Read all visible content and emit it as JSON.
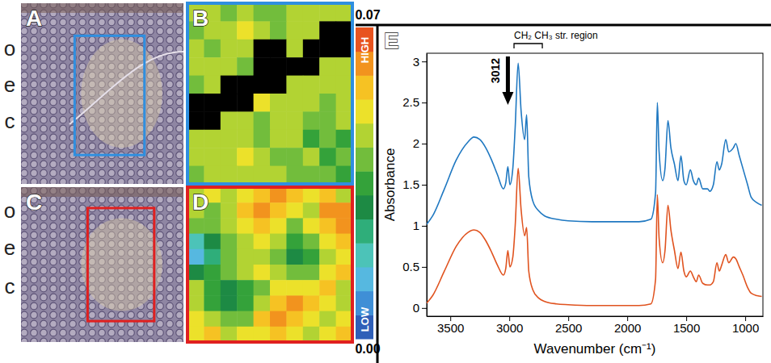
{
  "chart_data": [
    {
      "type": "image",
      "title": "A",
      "layers": [
        "o",
        "e",
        "c"
      ],
      "color": "#2f8fe0"
    },
    {
      "type": "heatmap",
      "title": "B",
      "color": "#2f8fe0",
      "cells": [
        [
          0.044,
          0.046,
          0.041,
          0.045,
          0.039,
          0.043,
          0.046,
          0.047,
          0.044,
          0.046
        ],
        [
          0.042,
          0.047,
          0.045,
          0.049,
          0.046,
          0.043,
          0.047,
          0.044,
          null,
          null
        ],
        [
          0.045,
          0.043,
          0.046,
          0.048,
          null,
          null,
          0.045,
          null,
          null,
          null
        ],
        [
          0.047,
          0.044,
          0.045,
          0.043,
          null,
          null,
          null,
          null,
          0.046,
          0.044
        ],
        [
          0.043,
          0.046,
          null,
          null,
          null,
          null,
          0.047,
          0.045,
          0.048,
          0.046
        ],
        [
          null,
          null,
          null,
          null,
          0.049,
          0.046,
          0.044,
          0.047,
          0.043,
          0.045
        ],
        [
          null,
          null,
          0.047,
          0.045,
          0.043,
          0.048,
          0.046,
          0.042,
          0.038,
          0.044
        ],
        [
          0.046,
          0.044,
          0.048,
          0.046,
          0.042,
          0.045,
          0.047,
          0.036,
          0.041,
          0.034
        ],
        [
          0.045,
          0.047,
          0.044,
          0.049,
          0.046,
          0.043,
          0.04,
          0.044,
          0.033,
          0.039
        ],
        [
          0.043,
          0.045,
          0.046,
          0.044,
          0.047,
          0.045,
          0.042,
          0.039,
          0.041,
          0.036
        ]
      ]
    },
    {
      "type": "image",
      "title": "C",
      "layers": [
        "o",
        "e",
        "c"
      ],
      "color": "#e02020"
    },
    {
      "type": "heatmap",
      "title": "D",
      "color": "#e02020",
      "cells": [
        [
          0.046,
          0.05,
          0.044,
          0.052,
          0.058,
          0.062,
          0.056,
          0.05,
          0.054,
          0.048
        ],
        [
          0.044,
          0.042,
          0.048,
          0.055,
          0.063,
          0.057,
          0.052,
          0.047,
          0.06,
          0.064
        ],
        [
          0.04,
          0.038,
          0.045,
          0.05,
          0.056,
          0.049,
          0.043,
          0.05,
          0.057,
          0.061
        ],
        [
          0.018,
          0.03,
          0.041,
          0.046,
          0.052,
          0.045,
          0.036,
          0.04,
          0.049,
          0.056
        ],
        [
          0.014,
          0.025,
          0.038,
          0.044,
          0.048,
          0.04,
          0.03,
          0.034,
          0.046,
          0.052
        ],
        [
          0.03,
          0.036,
          0.042,
          0.047,
          0.053,
          0.046,
          0.038,
          0.043,
          0.05,
          0.055
        ],
        [
          0.045,
          0.033,
          0.03,
          0.036,
          0.042,
          0.051,
          0.049,
          0.053,
          0.058,
          0.047
        ],
        [
          0.048,
          0.034,
          0.028,
          0.033,
          0.046,
          0.059,
          0.064,
          0.057,
          0.051,
          0.044
        ],
        [
          0.052,
          0.046,
          0.038,
          0.043,
          0.055,
          0.062,
          0.058,
          0.05,
          0.045,
          0.049
        ],
        [
          0.05,
          0.055,
          0.048,
          0.052,
          0.049,
          0.056,
          0.051,
          0.046,
          0.053,
          0.057
        ]
      ]
    },
    {
      "type": "colorbar",
      "range": [
        0,
        0.07
      ],
      "ticks": [
        {
          "value": 0,
          "label": "0.00"
        },
        0.07
      ],
      "colors": [
        "#2f5fb8",
        "#3f8fd6",
        "#56b8e0",
        "#4cc3b8",
        "#2fae7a",
        "#1d8a44",
        "#34a23a",
        "#72bd3c",
        "#b2d333",
        "#ece12a",
        "#f6c223",
        "#f2931e",
        "#e8531f"
      ],
      "high_label": "HIGH",
      "low_label": "LOW"
    },
    {
      "type": "line",
      "title": "E",
      "x_label": "Wavenumber (cm⁻¹)",
      "y_label": "Absorbance",
      "x": [
        3700,
        3650,
        3550,
        3450,
        3350,
        3300,
        3250,
        3200,
        3150,
        3100,
        3050,
        3030,
        3012,
        2995,
        2970,
        2950,
        2925,
        2900,
        2870,
        2853,
        2835,
        2800,
        2750,
        2700,
        2600,
        2500,
        2300,
        2100,
        1900,
        1800,
        1760,
        1745,
        1730,
        1700,
        1680,
        1655,
        1630,
        1600,
        1570,
        1545,
        1520,
        1500,
        1465,
        1440,
        1415,
        1395,
        1360,
        1320,
        1300,
        1270,
        1240,
        1220,
        1200,
        1165,
        1140,
        1100,
        1080,
        1050,
        1020,
        980,
        950,
        900,
        860
      ],
      "series": [
        {
          "color": "#1f78c1",
          "values": [
            1.02,
            1.12,
            1.45,
            1.8,
            2.02,
            2.08,
            2.05,
            1.95,
            1.8,
            1.62,
            1.45,
            1.52,
            1.72,
            1.5,
            1.7,
            2.2,
            2.98,
            2.4,
            2.05,
            2.35,
            1.6,
            1.3,
            1.18,
            1.12,
            1.08,
            1.06,
            1.05,
            1.05,
            1.05,
            1.08,
            1.4,
            2.5,
            1.9,
            1.55,
            1.7,
            2.28,
            1.95,
            1.75,
            1.55,
            1.85,
            1.55,
            1.5,
            1.68,
            1.55,
            1.5,
            1.58,
            1.45,
            1.45,
            1.42,
            1.5,
            1.78,
            1.68,
            1.75,
            2.05,
            1.9,
            1.95,
            2.0,
            1.85,
            1.7,
            1.5,
            1.35,
            1.28,
            1.25
          ]
        },
        {
          "color": "#e0531f",
          "values": [
            0.06,
            0.15,
            0.45,
            0.75,
            0.92,
            0.95,
            0.92,
            0.82,
            0.68,
            0.52,
            0.4,
            0.48,
            0.7,
            0.5,
            0.62,
            1.0,
            1.7,
            1.2,
            0.88,
            0.98,
            0.45,
            0.22,
            0.12,
            0.08,
            0.05,
            0.04,
            0.03,
            0.03,
            0.03,
            0.05,
            0.35,
            1.38,
            0.85,
            0.55,
            0.7,
            1.25,
            0.95,
            0.7,
            0.48,
            0.68,
            0.45,
            0.38,
            0.45,
            0.38,
            0.32,
            0.4,
            0.3,
            0.28,
            0.28,
            0.32,
            0.55,
            0.45,
            0.52,
            0.65,
            0.55,
            0.62,
            0.6,
            0.5,
            0.4,
            0.25,
            0.18,
            0.15,
            0.14
          ]
        }
      ],
      "xlim": [
        3700,
        850
      ],
      "ylim": [
        -0.1,
        3.1
      ],
      "xticks": [
        3500,
        3000,
        2500,
        2000,
        1500,
        1000
      ],
      "yticks": [
        0,
        0.5,
        1,
        1.5,
        2,
        2.5,
        3
      ],
      "annotations": [
        {
          "label": "3012",
          "x": 3012
        },
        {
          "label": "CH₂ CH₃ str. region",
          "x": [
            2960,
            2720
          ]
        }
      ]
    }
  ]
}
